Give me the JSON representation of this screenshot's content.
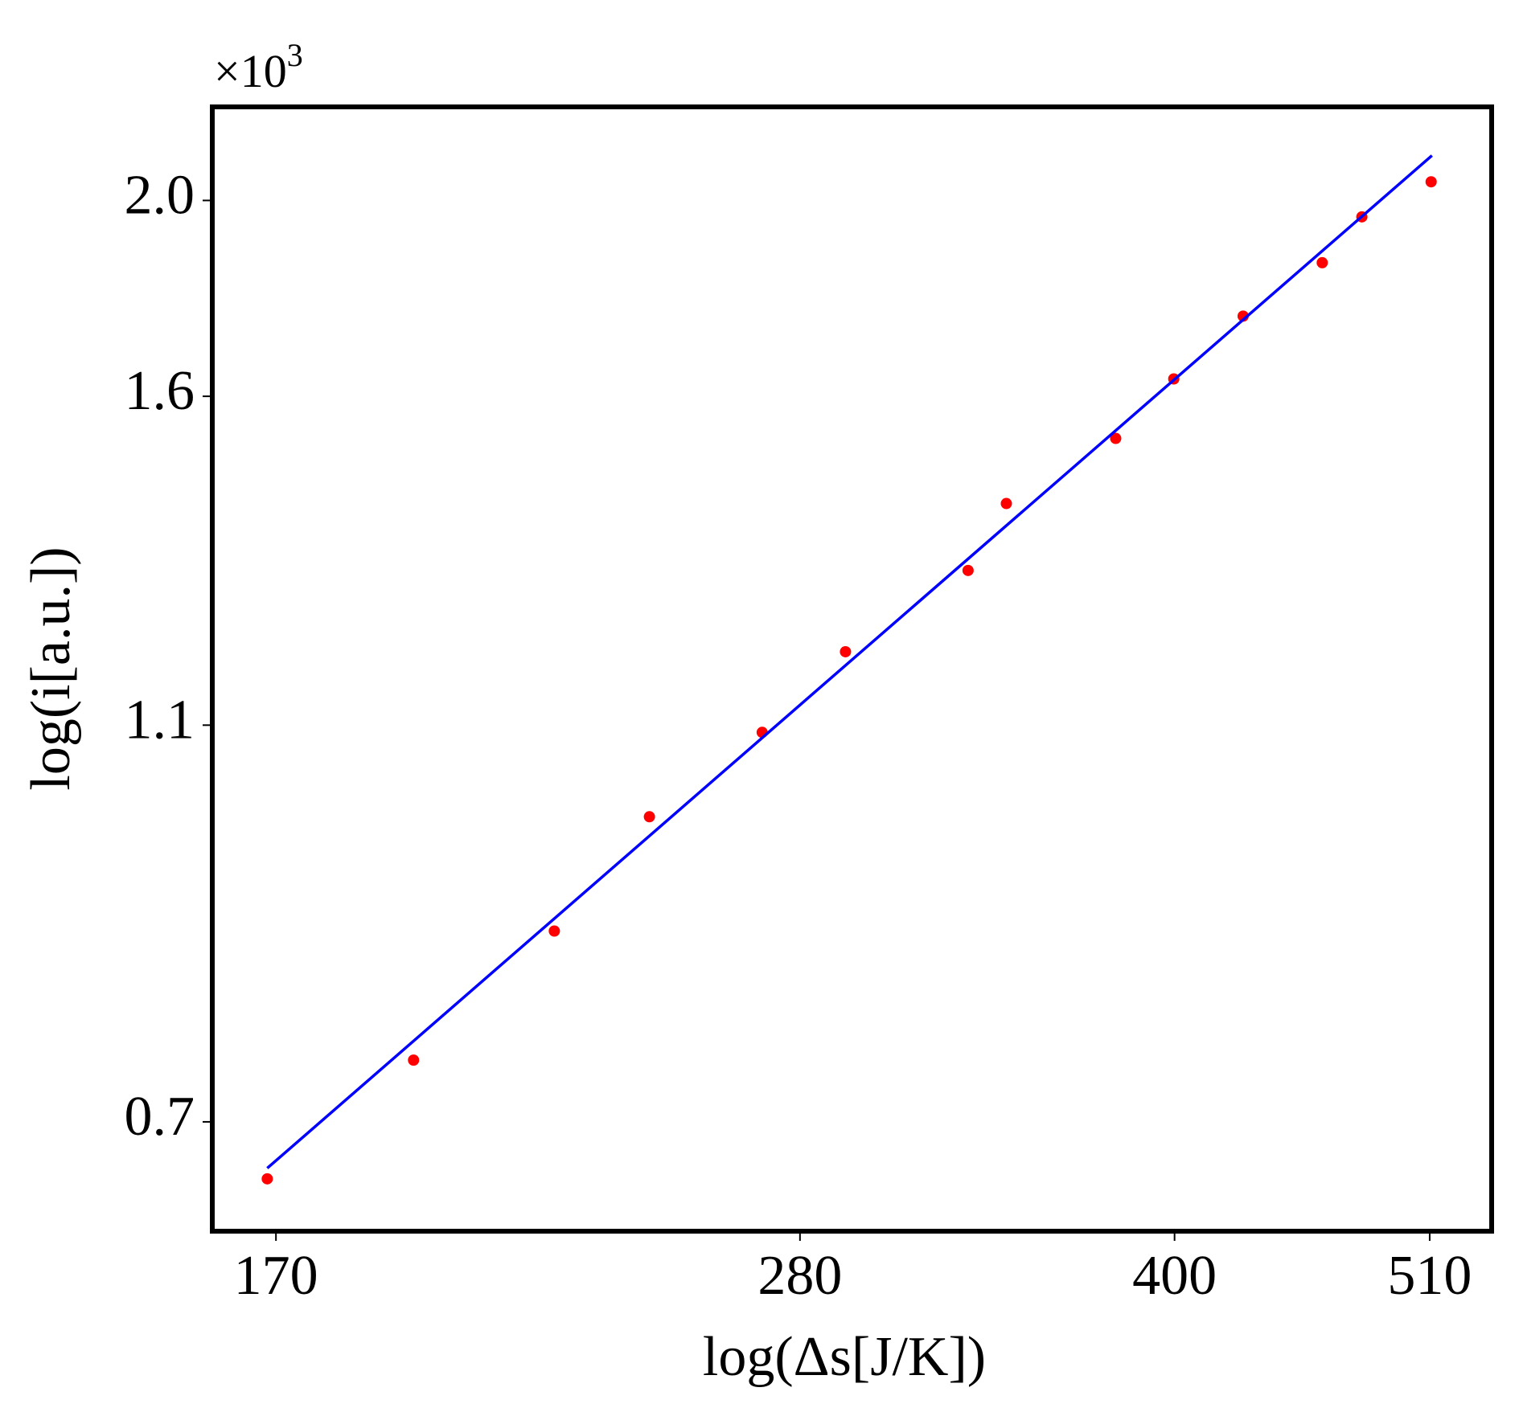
{
  "chart_data": {
    "type": "scatter",
    "xlabel": "log(Δs[J/K])",
    "ylabel": "log(i[a.u.])",
    "y_multiplier": "×10",
    "y_multiplier_exponent": "3",
    "xscale": "log",
    "yscale": "log",
    "xlim": [
      160,
      541
    ],
    "ylim": [
      0.618,
      2.225
    ],
    "xticks": [
      170,
      280,
      400,
      510
    ],
    "yticks": [
      0.7,
      1.1,
      1.6,
      {
        "value": 2.0,
        "label": "2.0"
      }
    ],
    "grid": false,
    "series": [
      {
        "type": "scatter",
        "color": "#ff0000",
        "x": [
          168.6,
          193.8,
          221.6,
          242.6,
          270.1,
          292.4,
          328.6,
          340.8,
          378.2,
          399.7,
          427.0,
          460.4,
          478.1,
          510.7
        ],
        "values": [
          0.656,
          0.751,
          0.87,
          0.991,
          1.091,
          1.196,
          1.312,
          1.416,
          1.525,
          1.632,
          1.753,
          1.863,
          1.963,
          2.043
        ]
      },
      {
        "type": "line",
        "color": "#0000ff",
        "x": [
          168.6,
          511.1
        ],
        "values": [
          0.664,
          2.105
        ]
      }
    ]
  }
}
